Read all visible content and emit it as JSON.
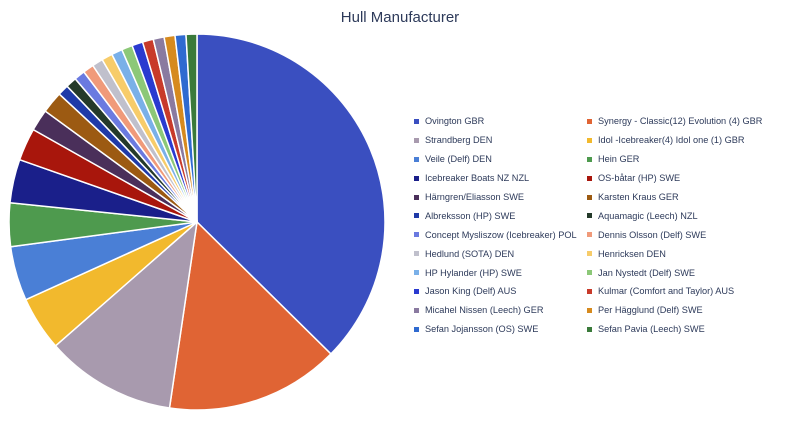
{
  "chart_data": {
    "type": "pie",
    "title": "Hull Manufacturer",
    "legend_position": "right",
    "series": [
      {
        "name": "Ovington GBR",
        "value": 40,
        "color": "#3a4fc0"
      },
      {
        "name": "Synergy - Classic(12) Evolution (4) GBR",
        "value": 16,
        "color": "#e06434"
      },
      {
        "name": "Strandberg DEN",
        "value": 12,
        "color": "#a89aae"
      },
      {
        "name": "Idol -Icebreaker(4) Idol one (1) GBR",
        "value": 5,
        "color": "#f2b92d"
      },
      {
        "name": "Veile (Delf) DEN",
        "value": 5,
        "color": "#4a7fd6"
      },
      {
        "name": "Hein GER",
        "value": 4,
        "color": "#4e9a4e"
      },
      {
        "name": "Icebreaker Boats NZ NZL",
        "value": 4,
        "color": "#1a1f8a"
      },
      {
        "name": "OS-båtar (HP) SWE",
        "value": 3,
        "color": "#a8160c"
      },
      {
        "name": "Härngren/Eliasson SWE",
        "value": 2,
        "color": "#4a2f5a"
      },
      {
        "name": "Karsten Kraus GER",
        "value": 2,
        "color": "#9c5a12"
      },
      {
        "name": "Albreksson (HP) SWE",
        "value": 1,
        "color": "#1f3aa8"
      },
      {
        "name": "Aquamagic (Leech) NZL",
        "value": 1,
        "color": "#243a2a"
      },
      {
        "name": "Concept Mysliszow (Icebreaker) POL",
        "value": 1,
        "color": "#6a7ae0"
      },
      {
        "name": "Dennis Olsson (Delf) SWE",
        "value": 1,
        "color": "#f09a7a"
      },
      {
        "name": "Hedlund (SOTA) DEN",
        "value": 1,
        "color": "#c0c0cc"
      },
      {
        "name": "Henricksen DEN",
        "value": 1,
        "color": "#f7cc6a"
      },
      {
        "name": "HP Hylander (HP) SWE",
        "value": 1,
        "color": "#7ab0e8"
      },
      {
        "name": "Jan Nystedt (Delf) SWE",
        "value": 1,
        "color": "#8cc878"
      },
      {
        "name": "Jason King (Delf) AUS",
        "value": 1,
        "color": "#2a3ad0"
      },
      {
        "name": "Kulmar (Comfort and Taylor) AUS",
        "value": 1,
        "color": "#c83a2a"
      },
      {
        "name": "Micahel Nissen (Leech) GER",
        "value": 1,
        "color": "#8a7aa0"
      },
      {
        "name": "Per Hägglund (Delf) SWE",
        "value": 1,
        "color": "#d68a1e"
      },
      {
        "name": "Sefan Jojansson (OS) SWE",
        "value": 1,
        "color": "#2f6ad0"
      },
      {
        "name": "Sefan Pavia (Leech) SWE",
        "value": 1,
        "color": "#3a7a3a"
      }
    ]
  }
}
